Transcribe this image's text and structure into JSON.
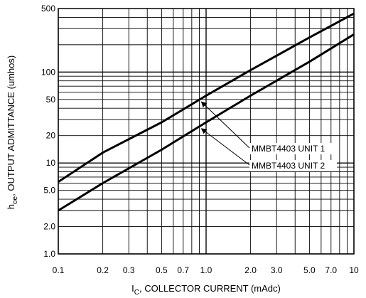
{
  "chart_data": {
    "type": "line",
    "title": "",
    "xlabel_main": "I",
    "xlabel_sub": "C",
    "xlabel_rest": ", COLLECTOR CURRENT (mAdc)",
    "ylabel_main": "h",
    "ylabel_sub": "oe",
    "ylabel_rest": ", OUTPUT ADMITTANCE (umhos)",
    "xscale": "log",
    "yscale": "log",
    "xlim": [
      0.1,
      10
    ],
    "ylim": [
      1.0,
      500
    ],
    "grid": true,
    "x_tick_labels": [
      {
        "value": 0.1,
        "label": "0.1"
      },
      {
        "value": 0.2,
        "label": "0.2"
      },
      {
        "value": 0.3,
        "label": "0.3"
      },
      {
        "value": 0.5,
        "label": "0.5"
      },
      {
        "value": 0.7,
        "label": "0.7"
      },
      {
        "value": 1.0,
        "label": "1.0"
      },
      {
        "value": 2.0,
        "label": "2.0"
      },
      {
        "value": 3.0,
        "label": "3.0"
      },
      {
        "value": 5.0,
        "label": "5.0"
      },
      {
        "value": 7.0,
        "label": "7.0"
      },
      {
        "value": 10,
        "label": "10"
      }
    ],
    "y_tick_labels": [
      {
        "value": 1.0,
        "label": "1.0"
      },
      {
        "value": 2.0,
        "label": "2.0"
      },
      {
        "value": 5.0,
        "label": "5.0"
      },
      {
        "value": 10,
        "label": "10"
      },
      {
        "value": 20,
        "label": "20"
      },
      {
        "value": 50,
        "label": "50"
      },
      {
        "value": 100,
        "label": "100"
      },
      {
        "value": 500,
        "label": "500"
      }
    ],
    "series": [
      {
        "name": "MMBT4403 UNIT 1",
        "x": [
          0.1,
          0.2,
          0.5,
          1.0,
          2.0,
          5.0,
          10
        ],
        "y": [
          6.2,
          13,
          28,
          55,
          105,
          240,
          440
        ]
      },
      {
        "name": "MMBT4403 UNIT 2",
        "x": [
          0.1,
          0.2,
          0.5,
          1.0,
          2.0,
          5.0,
          10
        ],
        "y": [
          3.0,
          6.0,
          14,
          28,
          55,
          130,
          260
        ]
      }
    ],
    "annotations": [
      {
        "text": "MMBT4403 UNIT 1",
        "points_to_series": 0,
        "at_x": 0.9
      },
      {
        "text": "MMBT4403 UNIT 2",
        "points_to_series": 1,
        "at_x": 0.9
      }
    ]
  }
}
